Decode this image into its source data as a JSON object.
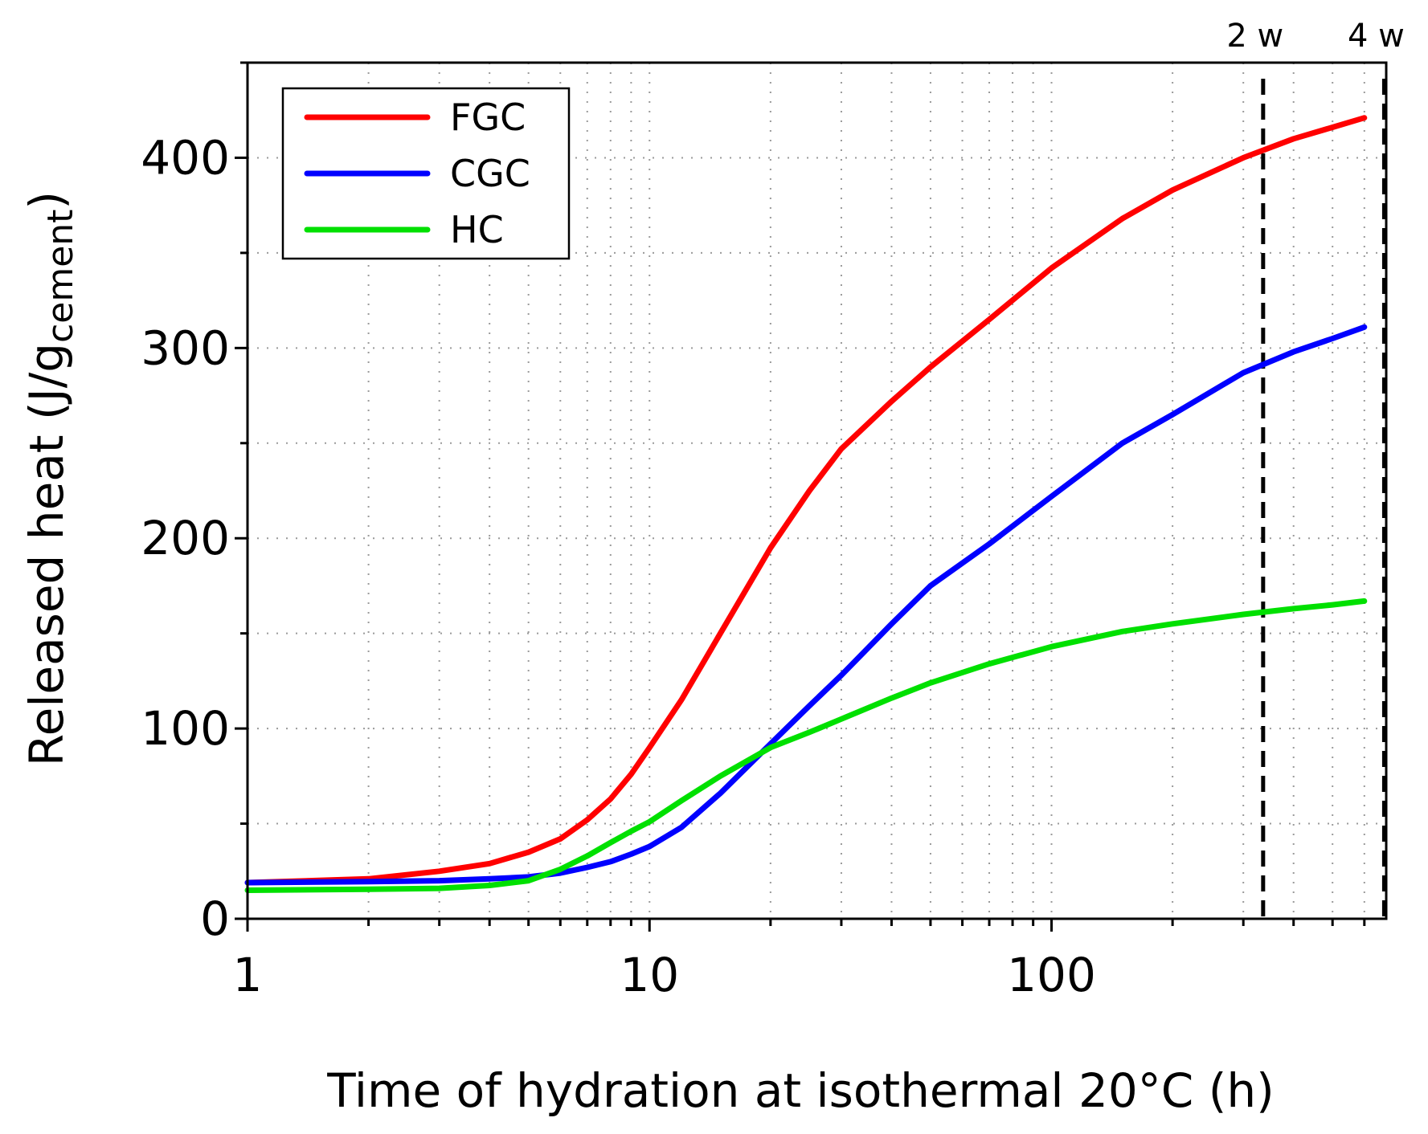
{
  "chart_data": {
    "type": "line",
    "xlabel": "Time of hydration at isothermal 20°C (h)",
    "ylabel": {
      "main": "Released heat (J/g",
      "subscript": "cement",
      "close": ")"
    },
    "xscale": "log",
    "xlim": [
      1,
      680
    ],
    "ylim": [
      0,
      450
    ],
    "x_ticks": [
      1,
      10,
      100
    ],
    "y_ticks": [
      0,
      100,
      200,
      300,
      400
    ],
    "grid": true,
    "legend_position": "top-left",
    "reference_lines": [
      {
        "label": "2 w",
        "x": 336
      },
      {
        "label": "4 w",
        "x": 672
      }
    ],
    "series": [
      {
        "name": "FGC",
        "color": "#ff0000",
        "points": [
          [
            1,
            19
          ],
          [
            2,
            21
          ],
          [
            3,
            25
          ],
          [
            4,
            29
          ],
          [
            5,
            35
          ],
          [
            6,
            42
          ],
          [
            7,
            52
          ],
          [
            8,
            63
          ],
          [
            9,
            76
          ],
          [
            10,
            90
          ],
          [
            12,
            115
          ],
          [
            15,
            150
          ],
          [
            20,
            195
          ],
          [
            25,
            225
          ],
          [
            30,
            247
          ],
          [
            40,
            272
          ],
          [
            50,
            290
          ],
          [
            70,
            315
          ],
          [
            100,
            342
          ],
          [
            150,
            368
          ],
          [
            200,
            383
          ],
          [
            300,
            400
          ],
          [
            400,
            410
          ],
          [
            500,
            416
          ],
          [
            600,
            421
          ]
        ]
      },
      {
        "name": "CGC",
        "color": "#0000ff",
        "points": [
          [
            1,
            19
          ],
          [
            2,
            19.5
          ],
          [
            3,
            20
          ],
          [
            4,
            21
          ],
          [
            5,
            22
          ],
          [
            6,
            24
          ],
          [
            7,
            27
          ],
          [
            8,
            30
          ],
          [
            9,
            34
          ],
          [
            10,
            38
          ],
          [
            12,
            48
          ],
          [
            15,
            66
          ],
          [
            20,
            92
          ],
          [
            25,
            112
          ],
          [
            30,
            128
          ],
          [
            40,
            155
          ],
          [
            50,
            175
          ],
          [
            70,
            197
          ],
          [
            100,
            222
          ],
          [
            150,
            250
          ],
          [
            200,
            265
          ],
          [
            300,
            287
          ],
          [
            400,
            298
          ],
          [
            500,
            305
          ],
          [
            600,
            311
          ]
        ]
      },
      {
        "name": "HC",
        "color": "#00e000",
        "points": [
          [
            1,
            15
          ],
          [
            2,
            15.5
          ],
          [
            3,
            16
          ],
          [
            4,
            17.5
          ],
          [
            5,
            20
          ],
          [
            6,
            26
          ],
          [
            7,
            33
          ],
          [
            8,
            40
          ],
          [
            9,
            46
          ],
          [
            10,
            51
          ],
          [
            12,
            62
          ],
          [
            15,
            75
          ],
          [
            20,
            90
          ],
          [
            25,
            98
          ],
          [
            30,
            105
          ],
          [
            40,
            116
          ],
          [
            50,
            124
          ],
          [
            70,
            134
          ],
          [
            100,
            143
          ],
          [
            150,
            151
          ],
          [
            200,
            155
          ],
          [
            300,
            160
          ],
          [
            400,
            163
          ],
          [
            500,
            165
          ],
          [
            600,
            167
          ]
        ]
      }
    ]
  }
}
